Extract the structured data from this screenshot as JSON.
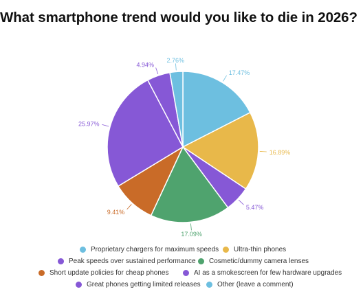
{
  "title": "What smartphone trend would you like to die in 2026?",
  "chart_data": {
    "type": "pie",
    "title": "What smartphone trend would you like to die in 2026?",
    "start_angle_deg": 0,
    "direction": "clockwise",
    "legend_position": "bottom",
    "slices": [
      {
        "label": "Proprietary chargers for maximum speeds",
        "value": 17.47,
        "display": "17.47%",
        "color": "#6dbfe0"
      },
      {
        "label": "Ultra-thin phones",
        "value": 16.89,
        "display": "16.89%",
        "color": "#e8b84a"
      },
      {
        "label": "AI as a smokescreen for few hardware upgrades",
        "value": 5.47,
        "display": "5.47%",
        "color": "#8658d6"
      },
      {
        "label": "Cosmetic/dummy camera lenses",
        "value": 17.09,
        "display": "17.09%",
        "color": "#4fa36e"
      },
      {
        "label": "Short update policies for cheap phones",
        "value": 9.41,
        "display": "9.41%",
        "color": "#c96b28"
      },
      {
        "label": "Peak speeds over sustained performance",
        "value": 25.97,
        "display": "25.97%",
        "color": "#8658d6"
      },
      {
        "label": "Great phones getting limited releases",
        "value": 4.94,
        "display": "4.94%",
        "color": "#8658d6"
      },
      {
        "label": "Other (leave a comment)",
        "value": 2.76,
        "display": "2.76%",
        "color": "#6dbfe0"
      }
    ]
  },
  "legend": {
    "rows": [
      [
        {
          "label": "Proprietary chargers for maximum speeds",
          "color": "#6dbfe0"
        },
        {
          "label": "Ultra-thin phones",
          "color": "#e8b84a"
        }
      ],
      [
        {
          "label": "Peak speeds over sustained performance",
          "color": "#8658d6"
        },
        {
          "label": "Cosmetic/dummy camera lenses",
          "color": "#4fa36e"
        }
      ],
      [
        {
          "label": "Short update policies for cheap phones",
          "color": "#c96b28"
        },
        {
          "label": "AI as a smokescreen for few hardware upgrades",
          "color": "#8658d6"
        }
      ],
      [
        {
          "label": "Great phones getting limited releases",
          "color": "#8658d6"
        },
        {
          "label": "Other (leave a comment)",
          "color": "#6dbfe0"
        }
      ]
    ]
  }
}
